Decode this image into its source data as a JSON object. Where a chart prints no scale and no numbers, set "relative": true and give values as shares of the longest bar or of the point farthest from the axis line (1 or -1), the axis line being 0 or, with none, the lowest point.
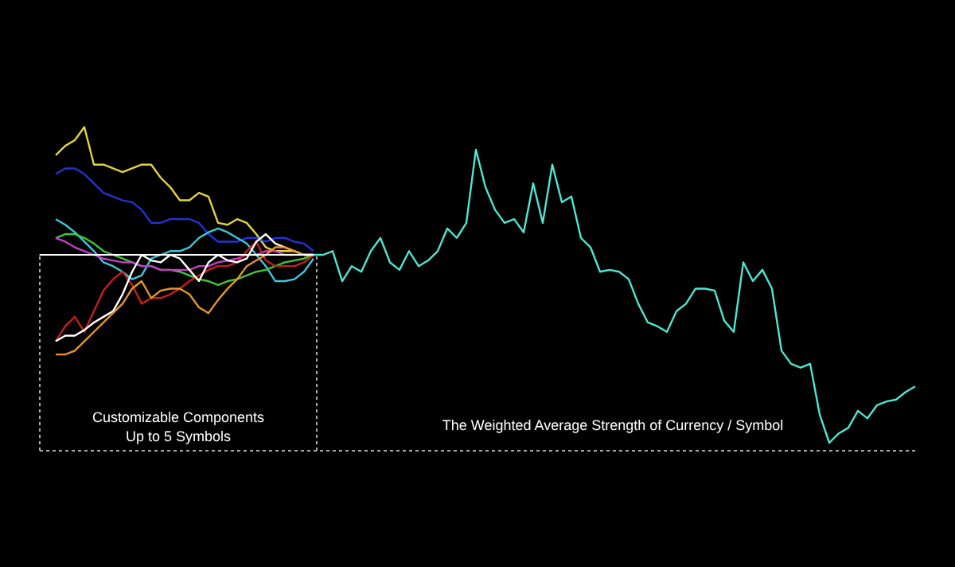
{
  "chart_data": {
    "type": "line",
    "relative": true,
    "grid": false,
    "line_style": "solid",
    "categories": [
      null,
      null,
      null,
      null,
      null,
      null,
      null,
      null,
      null,
      null,
      null,
      null,
      null,
      null,
      null,
      null,
      null,
      null,
      null,
      null,
      null,
      null,
      null,
      null,
      null,
      null,
      null,
      null,
      null,
      null,
      null,
      null,
      null,
      null,
      null,
      null,
      null,
      null,
      null,
      null,
      null,
      null,
      null,
      null,
      null,
      null,
      null,
      null,
      null,
      null,
      null,
      null,
      null,
      null,
      null,
      null,
      null,
      null,
      null,
      null,
      null,
      null,
      null,
      null,
      null,
      null,
      null,
      null,
      null,
      null,
      null,
      null,
      null,
      null,
      null,
      null,
      null,
      null,
      null,
      null,
      null,
      null,
      null,
      null,
      null,
      null,
      null,
      null,
      null,
      null,
      null
    ],
    "ref_lines": [
      {
        "axis": "y",
        "value": 0,
        "color": "#ffffff"
      }
    ],
    "annotations": [
      "Customizable Components",
      "Up to 5 Symbols",
      "The Weighted Average Strength of Currency / Symbol"
    ],
    "series": [
      {
        "color": "#e6d23c",
        "values": [
          0.53,
          0.58,
          0.61,
          0.68,
          0.48,
          0.48,
          0.46,
          0.44,
          0.46,
          0.48,
          0.48,
          0.41,
          0.36,
          0.29,
          0.29,
          0.33,
          0.31,
          0.17,
          0.16,
          0.19,
          0.17,
          0.11,
          0.04,
          0.02,
          0.02,
          0.02,
          0,
          0,
          null,
          null,
          null,
          null,
          null,
          null,
          null,
          null,
          null,
          null,
          null,
          null,
          null,
          null,
          null,
          null,
          null,
          null,
          null,
          null,
          null,
          null,
          null,
          null,
          null,
          null,
          null,
          null,
          null,
          null,
          null,
          null,
          null,
          null,
          null,
          null,
          null,
          null,
          null,
          null,
          null,
          null,
          null,
          null,
          null,
          null,
          null,
          null,
          null,
          null,
          null,
          null,
          null,
          null,
          null,
          null,
          null,
          null,
          null,
          null,
          null,
          null,
          null
        ]
      },
      {
        "color": "#2233d6",
        "values": [
          0.43,
          0.46,
          0.46,
          0.43,
          0.38,
          0.33,
          0.31,
          0.29,
          0.28,
          0.24,
          0.17,
          0.17,
          0.19,
          0.19,
          0.19,
          0.17,
          0.11,
          0.07,
          0.07,
          0.07,
          0.09,
          0.09,
          0.07,
          0.09,
          0.09,
          0.07,
          0.06,
          0.02,
          null,
          null,
          null,
          null,
          null,
          null,
          null,
          null,
          null,
          null,
          null,
          null,
          null,
          null,
          null,
          null,
          null,
          null,
          null,
          null,
          null,
          null,
          null,
          null,
          null,
          null,
          null,
          null,
          null,
          null,
          null,
          null,
          null,
          null,
          null,
          null,
          null,
          null,
          null,
          null,
          null,
          null,
          null,
          null,
          null,
          null,
          null,
          null,
          null,
          null,
          null,
          null,
          null,
          null,
          null,
          null,
          null,
          null,
          null,
          null,
          null,
          null,
          null
        ]
      },
      {
        "color": "#3cc8dc",
        "values": [
          0.19,
          0.16,
          0.12,
          0.07,
          0.02,
          -0.04,
          -0.06,
          -0.09,
          -0.13,
          -0.11,
          -0.02,
          0,
          0.02,
          0.02,
          0.04,
          0.09,
          0.12,
          0.14,
          0.12,
          0.09,
          0.06,
          0,
          -0.06,
          -0.14,
          -0.14,
          -0.13,
          -0.09,
          -0.02,
          null,
          null,
          null,
          null,
          null,
          null,
          null,
          null,
          null,
          null,
          null,
          null,
          null,
          null,
          null,
          null,
          null,
          null,
          null,
          null,
          null,
          null,
          null,
          null,
          null,
          null,
          null,
          null,
          null,
          null,
          null,
          null,
          null,
          null,
          null,
          null,
          null,
          null,
          null,
          null,
          null,
          null,
          null,
          null,
          null,
          null,
          null,
          null,
          null,
          null,
          null,
          null,
          null,
          null,
          null,
          null,
          null,
          null,
          null,
          null,
          null,
          null,
          null
        ]
      },
      {
        "color": "#3cc83c",
        "values": [
          0.09,
          0.11,
          0.11,
          0.09,
          0.06,
          0.02,
          0,
          -0.02,
          -0.04,
          -0.06,
          -0.06,
          -0.08,
          -0.08,
          -0.09,
          -0.11,
          -0.13,
          -0.14,
          -0.16,
          -0.14,
          -0.13,
          -0.11,
          -0.09,
          -0.08,
          -0.06,
          -0.04,
          -0.03,
          -0.02,
          0,
          null,
          null,
          null,
          null,
          null,
          null,
          null,
          null,
          null,
          null,
          null,
          null,
          null,
          null,
          null,
          null,
          null,
          null,
          null,
          null,
          null,
          null,
          null,
          null,
          null,
          null,
          null,
          null,
          null,
          null,
          null,
          null,
          null,
          null,
          null,
          null,
          null,
          null,
          null,
          null,
          null,
          null,
          null,
          null,
          null,
          null,
          null,
          null,
          null,
          null,
          null,
          null,
          null,
          null,
          null,
          null,
          null,
          null,
          null,
          null,
          null,
          null,
          null
        ]
      },
      {
        "color": "#c83cc8",
        "values": [
          0.09,
          0.07,
          0.04,
          0.02,
          0,
          -0.02,
          -0.03,
          -0.04,
          -0.04,
          -0.06,
          -0.06,
          -0.08,
          -0.08,
          -0.08,
          -0.08,
          -0.06,
          -0.06,
          -0.04,
          -0.03,
          -0.02,
          0,
          0,
          0.02,
          0.02,
          0,
          0,
          null,
          null,
          null,
          null,
          null,
          null,
          null,
          null,
          null,
          null,
          null,
          null,
          null,
          null,
          null,
          null,
          null,
          null,
          null,
          null,
          null,
          null,
          null,
          null,
          null,
          null,
          null,
          null,
          null,
          null,
          null,
          null,
          null,
          null,
          null,
          null,
          null,
          null,
          null,
          null,
          null,
          null,
          null,
          null,
          null,
          null,
          null,
          null,
          null,
          null,
          null,
          null,
          null,
          null,
          null,
          null,
          null,
          null,
          null,
          null,
          null,
          null,
          null,
          null,
          null
        ]
      },
      {
        "color": "#c81e1e",
        "values": [
          -0.46,
          -0.38,
          -0.33,
          -0.41,
          -0.3,
          -0.19,
          -0.13,
          -0.09,
          -0.16,
          -0.26,
          -0.23,
          -0.23,
          -0.21,
          -0.18,
          -0.14,
          -0.11,
          -0.08,
          -0.06,
          -0.06,
          -0.04,
          0.02,
          0.07,
          -0.03,
          -0.06,
          -0.06,
          -0.06,
          -0.04,
          0,
          null,
          null,
          null,
          null,
          null,
          null,
          null,
          null,
          null,
          null,
          null,
          null,
          null,
          null,
          null,
          null,
          null,
          null,
          null,
          null,
          null,
          null,
          null,
          null,
          null,
          null,
          null,
          null,
          null,
          null,
          null,
          null,
          null,
          null,
          null,
          null,
          null,
          null,
          null,
          null,
          null,
          null,
          null,
          null,
          null,
          null,
          null,
          null,
          null,
          null,
          null,
          null,
          null,
          null,
          null,
          null,
          null,
          null,
          null,
          null,
          null,
          null,
          null
        ]
      },
      {
        "color": "#ffffff",
        "values": [
          -0.46,
          -0.43,
          -0.43,
          -0.4,
          -0.36,
          -0.33,
          -0.3,
          -0.21,
          -0.09,
          0,
          -0.03,
          -0.04,
          0,
          -0.02,
          -0.08,
          -0.14,
          -0.04,
          0,
          -0.03,
          -0.04,
          -0.02,
          0.07,
          0.11,
          0.06,
          0.04,
          0.02,
          0,
          0,
          null,
          null,
          null,
          null,
          null,
          null,
          null,
          null,
          null,
          null,
          null,
          null,
          null,
          null,
          null,
          null,
          null,
          null,
          null,
          null,
          null,
          null,
          null,
          null,
          null,
          null,
          null,
          null,
          null,
          null,
          null,
          null,
          null,
          null,
          null,
          null,
          null,
          null,
          null,
          null,
          null,
          null,
          null,
          null,
          null,
          null,
          null,
          null,
          null,
          null,
          null,
          null,
          null,
          null,
          null,
          null,
          null,
          null,
          null,
          null,
          null,
          null,
          null
        ]
      },
      {
        "color": "#e69628",
        "values": [
          -0.53,
          -0.53,
          -0.51,
          -0.46,
          -0.41,
          -0.36,
          -0.31,
          -0.26,
          -0.18,
          -0.14,
          -0.23,
          -0.19,
          -0.18,
          -0.18,
          -0.21,
          -0.28,
          -0.31,
          -0.24,
          -0.18,
          -0.13,
          -0.06,
          -0.03,
          0,
          0.04,
          0.04,
          0.02,
          0,
          0,
          null,
          null,
          null,
          null,
          null,
          null,
          null,
          null,
          null,
          null,
          null,
          null,
          null,
          null,
          null,
          null,
          null,
          null,
          null,
          null,
          null,
          null,
          null,
          null,
          null,
          null,
          null,
          null,
          null,
          null,
          null,
          null,
          null,
          null,
          null,
          null,
          null,
          null,
          null,
          null,
          null,
          null,
          null,
          null,
          null,
          null,
          null,
          null,
          null,
          null,
          null,
          null,
          null,
          null,
          null,
          null,
          null,
          null,
          null,
          null,
          null,
          null,
          null
        ]
      },
      {
        "color": "#4de6d2",
        "values": [
          null,
          null,
          null,
          null,
          null,
          null,
          null,
          null,
          null,
          null,
          null,
          null,
          null,
          null,
          null,
          null,
          null,
          null,
          null,
          null,
          null,
          null,
          null,
          null,
          null,
          null,
          null,
          0,
          0,
          0.02,
          -0.14,
          -0.06,
          -0.09,
          0.02,
          0.09,
          -0.04,
          -0.08,
          0.02,
          -0.06,
          -0.03,
          0.02,
          0.14,
          0.09,
          0.17,
          0.56,
          0.36,
          0.24,
          0.17,
          0.19,
          0.12,
          0.38,
          0.17,
          0.48,
          0.28,
          0.31,
          0.09,
          0.04,
          -0.09,
          -0.08,
          -0.09,
          -0.13,
          -0.26,
          -0.36,
          -0.38,
          -0.41,
          -0.3,
          -0.26,
          -0.18,
          -0.18,
          -0.19,
          -0.35,
          -0.41,
          -0.04,
          -0.14,
          -0.08,
          -0.18,
          -0.51,
          -0.58,
          -0.6,
          -0.58,
          -0.85,
          -1.0,
          -0.95,
          -0.92,
          -0.83,
          -0.87,
          -0.8,
          -0.78,
          -0.77,
          -0.73,
          -0.7
        ]
      }
    ]
  }
}
